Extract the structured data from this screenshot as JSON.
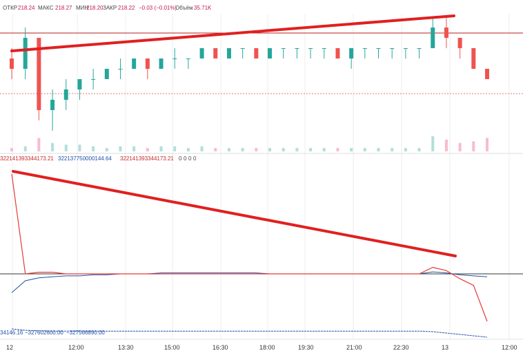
{
  "header": {
    "open_label": "ОТКР",
    "open_value": "218.24",
    "high_label": "МАКС",
    "high_value": "218.27",
    "low_label": "МИН",
    "low_value": "218.20",
    "close_label": "ЗАКР",
    "close_value": "218.22",
    "change_value": "−0.03 (−0.01%)",
    "volume_label": "Объём",
    "volume_value": "35.71K"
  },
  "indicator_legend": [
    "322141393344173.21",
    "322137750000144.64",
    "322141393344173.21",
    "0",
    "0",
    "0",
    "0"
  ],
  "bottom_legend": [
    "34146.16",
    "−327602600.00",
    "−327566890.00"
  ],
  "x_ticks": [
    "12",
    "12:00",
    "13:30",
    "15:00",
    "16:30",
    "18:00",
    "19:30",
    "21:00",
    "22:30",
    "13",
    "12:00"
  ],
  "colors": {
    "up": "#26a69a",
    "down": "#ef5350",
    "trend": "#e02020",
    "hline": "#b71c1c",
    "indicator_blue": "#1f4fa8",
    "indicator_red": "#e53935",
    "volume_up": "#b2dfdb",
    "volume_down": "#f8bbd0",
    "grid": "#eeeeee"
  },
  "chart_data": {
    "type": "candlestick",
    "price_ohlc": [
      [
        218.24,
        218.25,
        218.22,
        218.23
      ],
      [
        218.23,
        218.27,
        218.22,
        218.26
      ],
      [
        218.26,
        218.26,
        218.18,
        218.19
      ],
      [
        218.19,
        218.21,
        218.17,
        218.2
      ],
      [
        218.2,
        218.22,
        218.19,
        218.21
      ],
      [
        218.21,
        218.22,
        218.2,
        218.22
      ],
      [
        218.22,
        218.23,
        218.21,
        218.22
      ],
      [
        218.22,
        218.23,
        218.22,
        218.23
      ],
      [
        218.23,
        218.24,
        218.22,
        218.23
      ],
      [
        218.23,
        218.24,
        218.23,
        218.24
      ],
      [
        218.24,
        218.24,
        218.22,
        218.23
      ],
      [
        218.23,
        218.24,
        218.23,
        218.24
      ],
      [
        218.24,
        218.25,
        218.23,
        218.24
      ],
      [
        218.24,
        218.24,
        218.23,
        218.24
      ],
      [
        218.24,
        218.25,
        218.24,
        218.25
      ],
      [
        218.25,
        218.25,
        218.24,
        218.24
      ],
      [
        218.24,
        218.25,
        218.24,
        218.25
      ],
      [
        218.25,
        218.25,
        218.24,
        218.25
      ],
      [
        218.25,
        218.25,
        218.24,
        218.24
      ],
      [
        218.24,
        218.25,
        218.24,
        218.25
      ],
      [
        218.25,
        218.25,
        218.24,
        218.25
      ],
      [
        218.25,
        218.25,
        218.24,
        218.25
      ],
      [
        218.25,
        218.25,
        218.24,
        218.25
      ],
      [
        218.25,
        218.25,
        218.24,
        218.25
      ],
      [
        218.25,
        218.25,
        218.24,
        218.24
      ],
      [
        218.24,
        218.25,
        218.23,
        218.25
      ],
      [
        218.25,
        218.25,
        218.24,
        218.25
      ],
      [
        218.25,
        218.25,
        218.24,
        218.25
      ],
      [
        218.25,
        218.25,
        218.24,
        218.25
      ],
      [
        218.25,
        218.25,
        218.24,
        218.25
      ],
      [
        218.25,
        218.25,
        218.24,
        218.25
      ],
      [
        218.25,
        218.28,
        218.25,
        218.27
      ],
      [
        218.27,
        218.28,
        218.25,
        218.26
      ],
      [
        218.26,
        218.26,
        218.24,
        218.25
      ],
      [
        218.25,
        218.25,
        218.23,
        218.23
      ],
      [
        218.23,
        218.23,
        218.22,
        218.22
      ]
    ],
    "volume": [
      2,
      3,
      8,
      5,
      4,
      4,
      3,
      2,
      3,
      3,
      2,
      3,
      3,
      2,
      3,
      2,
      2,
      2,
      2,
      2,
      2,
      2,
      2,
      2,
      2,
      2,
      2,
      2,
      2,
      2,
      2,
      9,
      7,
      5,
      6,
      8
    ],
    "price_levels": {
      "upper_line": 218.265,
      "last_price": 218.22
    },
    "indicator_blue": [
      0.2,
      0.32,
      0.35,
      0.36,
      0.37,
      0.37,
      0.38,
      0.38,
      0.39,
      0.39,
      0.39,
      0.4,
      0.4,
      0.4,
      0.4,
      0.4,
      0.4,
      0.4,
      0.4,
      0.39,
      0.39,
      0.39,
      0.39,
      0.39,
      0.39,
      0.39,
      0.39,
      0.39,
      0.39,
      0.39,
      0.39,
      0.41,
      0.4,
      0.38,
      0.37,
      0.36
    ],
    "indicator_red": [
      1.0,
      0.39,
      0.4,
      0.4,
      0.39,
      0.39,
      0.39,
      0.39,
      0.39,
      0.39,
      0.39,
      0.39,
      0.39,
      0.39,
      0.39,
      0.39,
      0.39,
      0.39,
      0.39,
      0.39,
      0.39,
      0.39,
      0.39,
      0.39,
      0.39,
      0.39,
      0.39,
      0.39,
      0.39,
      0.39,
      0.39,
      0.43,
      0.41,
      0.36,
      0.32,
      0.1
    ],
    "bottom_line": [
      0.0,
      -0.05,
      -0.07,
      -0.08,
      -0.08,
      -0.08,
      -0.08,
      -0.08,
      -0.08,
      -0.08,
      -0.08,
      -0.08,
      -0.08,
      -0.08,
      -0.08,
      -0.08,
      -0.08,
      -0.08,
      -0.08,
      -0.08,
      -0.08,
      -0.08,
      -0.08,
      -0.08,
      -0.08,
      -0.08,
      -0.08,
      -0.08,
      -0.08,
      -0.08,
      -0.08,
      -0.1,
      -0.15,
      -0.2,
      -0.25,
      -0.3
    ]
  }
}
